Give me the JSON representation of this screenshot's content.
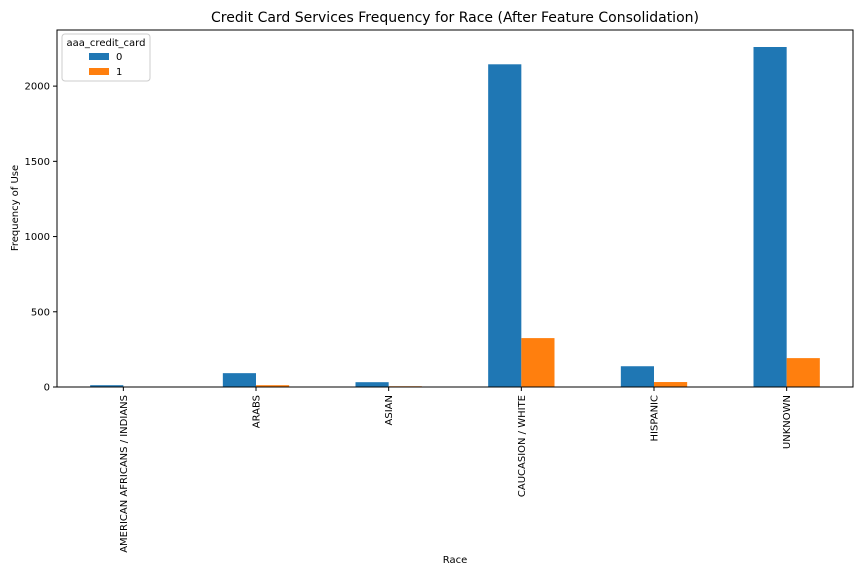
{
  "chart_data": {
    "type": "bar",
    "title": "Credit Card Services Frequency for Race (After Feature Consolidation)",
    "xlabel": "Race",
    "ylabel": "Frequency of Use",
    "categories": [
      "AMERICAN AFRICANS / INDIANS",
      "ARABS",
      "ASIAN",
      "CAUCASION / WHITE",
      "HISPANIC",
      "UNKNOWN"
    ],
    "series": [
      {
        "name": "0",
        "values": [
          12,
          92,
          32,
          2145,
          138,
          2260
        ],
        "color": "#1f77b4"
      },
      {
        "name": "1",
        "values": [
          0,
          12,
          5,
          325,
          33,
          192
        ],
        "color": "#ff7f0e"
      }
    ],
    "yticks": [
      0,
      500,
      1000,
      1500,
      2000
    ],
    "ylim": [
      0,
      2373
    ],
    "legend": {
      "title": "aaa_credit_card",
      "position": "top-left"
    },
    "grid": false
  }
}
